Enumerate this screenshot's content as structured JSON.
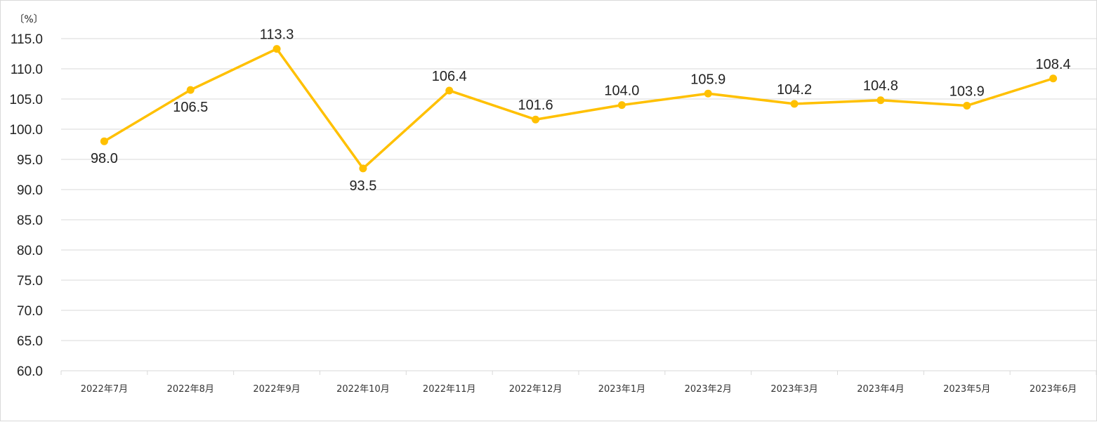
{
  "chart_data": {
    "type": "line",
    "title": "",
    "xlabel": "",
    "ylabel": "〔%〕",
    "ylim": [
      60.0,
      115.0
    ],
    "ystep": 5.0,
    "grid": true,
    "legend": "none",
    "line_color": "#FFC000",
    "categories": [
      "2022年7月",
      "2022年8月",
      "2022年9月",
      "2022年10月",
      "2022年11月",
      "2022年12月",
      "2023年1月",
      "2023年2月",
      "2023年3月",
      "2023年4月",
      "2023年5月",
      "2023年6月"
    ],
    "values": [
      98.0,
      106.5,
      113.3,
      93.5,
      106.4,
      101.6,
      104.0,
      105.9,
      104.2,
      104.8,
      103.9,
      108.4
    ],
    "label_position": [
      "below",
      "below",
      "above",
      "below",
      "above",
      "above",
      "above",
      "above",
      "above",
      "above",
      "above",
      "above"
    ]
  }
}
